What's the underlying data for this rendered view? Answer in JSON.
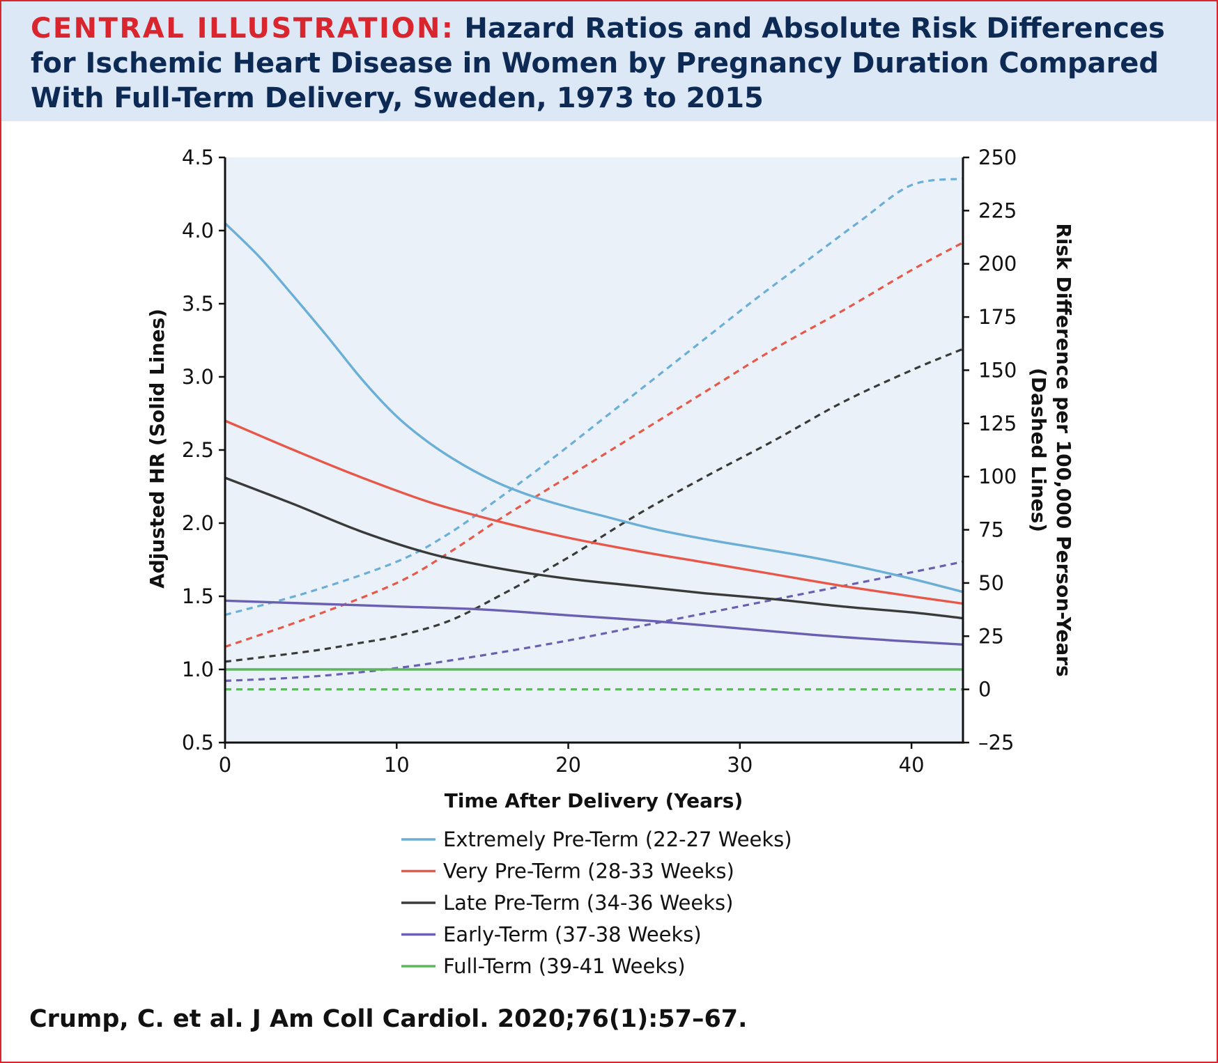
{
  "header": {
    "label": "CENTRAL ILLUSTRATION:",
    "title": "Hazard Ratios and Absolute Risk Differences for Ischemic Heart Disease in Women by Pregnancy Duration Compared With Full-Term Delivery, Sweden, 1973 to 2015",
    "background": "#dce8f5",
    "label_color": "#d9262e",
    "title_color": "#0d2a55"
  },
  "citation": "Crump, C. et al. J Am Coll Cardiol. 2020;76(1):57–67.",
  "chart_data": {
    "type": "line",
    "title": "",
    "xlabel": "Time After Delivery (Years)",
    "ylabel_left": "Adjusted HR (Solid Lines)",
    "ylabel_right_line1": "Risk Difference per 100,000 Person-Years",
    "ylabel_right_line2": "(Dashed Lines)",
    "xlim": [
      0,
      43
    ],
    "ylim_left": [
      0.5,
      4.5
    ],
    "ylim_right": [
      -25,
      250
    ],
    "x_ticks": [
      "0",
      "10",
      "20",
      "30",
      "40"
    ],
    "y_ticks_left": [
      "0.5",
      "1.0",
      "1.5",
      "2.0",
      "2.5",
      "3.0",
      "3.5",
      "4.0",
      "4.5"
    ],
    "y_ticks_right": [
      "–25",
      "0",
      "25",
      "50",
      "75",
      "100",
      "125",
      "150",
      "175",
      "200",
      "225",
      "250"
    ],
    "plot_background": "#eaf1f9",
    "grid": false,
    "legend_position": "bottom",
    "series": [
      {
        "name": "Extremely Pre-Term (22-27 Weeks)",
        "color": "#6baed6",
        "hr": {
          "x": [
            0,
            2,
            4,
            6,
            8,
            10,
            12,
            14,
            16,
            18,
            20,
            22,
            25,
            28,
            31,
            34,
            37,
            40,
            43
          ],
          "y": [
            4.05,
            3.82,
            3.55,
            3.27,
            2.98,
            2.73,
            2.54,
            2.39,
            2.27,
            2.18,
            2.11,
            2.05,
            1.96,
            1.89,
            1.83,
            1.77,
            1.7,
            1.62,
            1.53
          ]
        },
        "rd": {
          "x": [
            0,
            5,
            10,
            13,
            16,
            19,
            22,
            25,
            28,
            31,
            34,
            37,
            40,
            43
          ],
          "y": [
            35,
            46,
            60,
            73,
            90,
            108,
            127,
            146,
            165,
            184,
            202,
            220,
            237,
            240
          ]
        }
      },
      {
        "name": "Very Pre-Term (28-33 Weeks)",
        "color": "#e8584a",
        "hr": {
          "x": [
            0,
            4,
            8,
            12,
            16,
            20,
            24,
            28,
            32,
            36,
            40,
            43
          ],
          "y": [
            2.7,
            2.5,
            2.31,
            2.14,
            2.01,
            1.9,
            1.81,
            1.73,
            1.65,
            1.57,
            1.5,
            1.45
          ]
        },
        "rd": {
          "x": [
            0,
            5,
            10,
            13,
            16,
            20,
            24,
            28,
            32,
            36,
            40,
            43
          ],
          "y": [
            20,
            34,
            50,
            64,
            80,
            100,
            120,
            140,
            160,
            178,
            197,
            210
          ]
        }
      },
      {
        "name": "Late Pre-Term (34-36 Weeks)",
        "color": "#3a3a3a",
        "hr": {
          "x": [
            0,
            4,
            8,
            12,
            16,
            20,
            24,
            28,
            32,
            36,
            40,
            43
          ],
          "y": [
            2.31,
            2.13,
            1.94,
            1.79,
            1.69,
            1.62,
            1.57,
            1.52,
            1.48,
            1.43,
            1.39,
            1.35
          ]
        },
        "rd": {
          "x": [
            0,
            5,
            8,
            10,
            13,
            16,
            20,
            24,
            28,
            32,
            36,
            40,
            43
          ],
          "y": [
            13,
            18,
            22,
            25,
            32,
            44,
            62,
            82,
            100,
            117,
            135,
            150,
            160
          ]
        }
      },
      {
        "name": "Early-Term (37-38 Weeks)",
        "color": "#6a5fb0",
        "hr": {
          "x": [
            0,
            5,
            10,
            15,
            20,
            25,
            30,
            35,
            40,
            43
          ],
          "y": [
            1.47,
            1.45,
            1.43,
            1.41,
            1.37,
            1.33,
            1.28,
            1.23,
            1.19,
            1.17
          ]
        },
        "rd": {
          "x": [
            0,
            5,
            10,
            15,
            20,
            25,
            30,
            35,
            40,
            43
          ],
          "y": [
            4,
            6,
            10,
            16,
            23,
            31,
            39,
            47,
            55,
            60
          ]
        }
      },
      {
        "name": "Full-Term (39-41 Weeks)",
        "color": "#5cb85c",
        "hr": {
          "x": [
            0,
            43
          ],
          "y": [
            1.0,
            1.0
          ]
        },
        "rd": {
          "x": [
            0,
            43
          ],
          "y": [
            0,
            0
          ]
        }
      }
    ]
  }
}
